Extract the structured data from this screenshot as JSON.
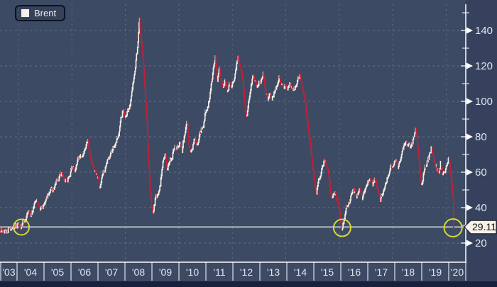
{
  "legend": {
    "label": "Brent",
    "swatch_color": "#f5f0e8"
  },
  "price_line": {
    "value": 29.11,
    "label": "29.11"
  },
  "colors": {
    "plot_bg": "#3d4a64",
    "margin_bg": "#36425d",
    "bottom_strip": "#18213c",
    "grid": "#8ba0b8",
    "axis": "#ffffff",
    "bar_up": "#f2eee5",
    "bar_down": "#c22038",
    "price_line": "#ffffff",
    "tag_bg": "#f7f2e8",
    "tag_border": "#14141c",
    "tag_text": "#101010",
    "tick_label": "#dfe5ee",
    "highlight": "#d5da31"
  },
  "chart_data": {
    "type": "line",
    "title": "Brent",
    "legend_entries": [
      "Brent"
    ],
    "legend_position": "top-left",
    "grid": "dashed",
    "x_axis": {
      "labels": [
        "'03",
        "'04",
        "'05",
        "'06",
        "'07",
        "'08",
        "'09",
        "'10",
        "'11",
        "'12",
        "'13",
        "'14",
        "'15",
        "'16",
        "'17",
        "'18",
        "'19",
        "'20"
      ],
      "start_year_fraction": 2003.37,
      "end_year_fraction": 2020.185
    },
    "y_axis": {
      "side": "right",
      "major_ticks": [
        20,
        40,
        60,
        80,
        100,
        120,
        140
      ],
      "minor_ticks": [
        30,
        50,
        70,
        90,
        110,
        130,
        150
      ],
      "range": [
        14,
        152
      ]
    },
    "reference_line": {
      "value": 29.11,
      "label": "29.11"
    },
    "highlighted_lows": [
      {
        "t": 2004.16,
        "value": 29.0,
        "radius_px": 11
      },
      {
        "t": 2016.05,
        "value": 28.6,
        "radius_px": 12
      },
      {
        "t": 2020.16,
        "value": 28.6,
        "radius_px": 12.5
      }
    ],
    "series": {
      "name": "Brent",
      "anchors": [
        [
          2003.37,
          27
        ],
        [
          2003.5,
          28.5
        ],
        [
          2003.62,
          27
        ],
        [
          2003.75,
          29
        ],
        [
          2003.85,
          28
        ],
        [
          2003.95,
          30
        ],
        [
          2004.05,
          31
        ],
        [
          2004.12,
          29.5
        ],
        [
          2004.2,
          32
        ],
        [
          2004.3,
          34
        ],
        [
          2004.4,
          36
        ],
        [
          2004.5,
          35
        ],
        [
          2004.62,
          41
        ],
        [
          2004.75,
          45
        ],
        [
          2004.82,
          41
        ],
        [
          2004.92,
          40
        ],
        [
          2005.05,
          44
        ],
        [
          2005.15,
          47
        ],
        [
          2005.25,
          51
        ],
        [
          2005.35,
          50
        ],
        [
          2005.45,
          54
        ],
        [
          2005.55,
          56
        ],
        [
          2005.65,
          59
        ],
        [
          2005.75,
          57
        ],
        [
          2005.85,
          55
        ],
        [
          2005.95,
          59
        ],
        [
          2006.05,
          63
        ],
        [
          2006.15,
          62
        ],
        [
          2006.25,
          67
        ],
        [
          2006.35,
          70
        ],
        [
          2006.45,
          69
        ],
        [
          2006.55,
          74
        ],
        [
          2006.62,
          78
        ],
        [
          2006.7,
          70
        ],
        [
          2006.8,
          63
        ],
        [
          2006.9,
          60
        ],
        [
          2007.0,
          57
        ],
        [
          2007.07,
          52
        ],
        [
          2007.15,
          58
        ],
        [
          2007.25,
          62
        ],
        [
          2007.35,
          66
        ],
        [
          2007.45,
          70
        ],
        [
          2007.55,
          72
        ],
        [
          2007.65,
          75
        ],
        [
          2007.75,
          80
        ],
        [
          2007.85,
          90
        ],
        [
          2007.92,
          94
        ],
        [
          2008.0,
          92
        ],
        [
          2008.1,
          95
        ],
        [
          2008.2,
          100
        ],
        [
          2008.3,
          110
        ],
        [
          2008.4,
          122
        ],
        [
          2008.48,
          132
        ],
        [
          2008.54,
          146
        ],
        [
          2008.6,
          135
        ],
        [
          2008.67,
          124
        ],
        [
          2008.73,
          110
        ],
        [
          2008.8,
          95
        ],
        [
          2008.87,
          68
        ],
        [
          2008.93,
          50
        ],
        [
          2008.99,
          40
        ],
        [
          2009.04,
          36
        ],
        [
          2009.12,
          44
        ],
        [
          2009.2,
          46
        ],
        [
          2009.3,
          52
        ],
        [
          2009.42,
          66
        ],
        [
          2009.5,
          71
        ],
        [
          2009.56,
          62
        ],
        [
          2009.65,
          67
        ],
        [
          2009.75,
          68
        ],
        [
          2009.85,
          76
        ],
        [
          2009.95,
          74
        ],
        [
          2010.05,
          78
        ],
        [
          2010.12,
          71
        ],
        [
          2010.2,
          80
        ],
        [
          2010.3,
          87
        ],
        [
          2010.4,
          72
        ],
        [
          2010.5,
          75
        ],
        [
          2010.6,
          78
        ],
        [
          2010.7,
          76
        ],
        [
          2010.8,
          83
        ],
        [
          2010.9,
          86
        ],
        [
          2010.97,
          93
        ],
        [
          2011.05,
          97
        ],
        [
          2011.15,
          103
        ],
        [
          2011.25,
          115
        ],
        [
          2011.3,
          122
        ],
        [
          2011.35,
          126
        ],
        [
          2011.42,
          112
        ],
        [
          2011.5,
          117
        ],
        [
          2011.57,
          111
        ],
        [
          2011.65,
          107
        ],
        [
          2011.72,
          113
        ],
        [
          2011.8,
          106
        ],
        [
          2011.88,
          110
        ],
        [
          2011.95,
          108
        ],
        [
          2012.03,
          111
        ],
        [
          2012.1,
          118
        ],
        [
          2012.2,
          124
        ],
        [
          2012.3,
          119
        ],
        [
          2012.4,
          106
        ],
        [
          2012.47,
          95
        ],
        [
          2012.52,
          90
        ],
        [
          2012.6,
          102
        ],
        [
          2012.68,
          110
        ],
        [
          2012.75,
          115
        ],
        [
          2012.83,
          112
        ],
        [
          2012.9,
          108
        ],
        [
          2012.97,
          111
        ],
        [
          2013.05,
          113
        ],
        [
          2013.12,
          117
        ],
        [
          2013.2,
          108
        ],
        [
          2013.3,
          100
        ],
        [
          2013.37,
          103
        ],
        [
          2013.45,
          101
        ],
        [
          2013.55,
          106
        ],
        [
          2013.65,
          110
        ],
        [
          2013.72,
          116
        ],
        [
          2013.8,
          110
        ],
        [
          2013.88,
          108
        ],
        [
          2013.95,
          111
        ],
        [
          2014.03,
          107
        ],
        [
          2014.1,
          109
        ],
        [
          2014.18,
          108
        ],
        [
          2014.25,
          107
        ],
        [
          2014.33,
          110
        ],
        [
          2014.42,
          113
        ],
        [
          2014.48,
          115
        ],
        [
          2014.55,
          110
        ],
        [
          2014.62,
          104
        ],
        [
          2014.7,
          97
        ],
        [
          2014.78,
          88
        ],
        [
          2014.85,
          79
        ],
        [
          2014.92,
          70
        ],
        [
          2014.99,
          60
        ],
        [
          2015.05,
          50
        ],
        [
          2015.1,
          47
        ],
        [
          2015.17,
          55
        ],
        [
          2015.25,
          60
        ],
        [
          2015.33,
          64
        ],
        [
          2015.4,
          66
        ],
        [
          2015.47,
          63
        ],
        [
          2015.55,
          58
        ],
        [
          2015.62,
          50
        ],
        [
          2015.67,
          43
        ],
        [
          2015.73,
          49
        ],
        [
          2015.8,
          48
        ],
        [
          2015.87,
          44
        ],
        [
          2015.93,
          40
        ],
        [
          2016.0,
          34
        ],
        [
          2016.05,
          28
        ],
        [
          2016.12,
          33
        ],
        [
          2016.2,
          39
        ],
        [
          2016.28,
          43
        ],
        [
          2016.35,
          45
        ],
        [
          2016.42,
          48
        ],
        [
          2016.5,
          50
        ],
        [
          2016.57,
          46
        ],
        [
          2016.65,
          49
        ],
        [
          2016.72,
          51
        ],
        [
          2016.8,
          45
        ],
        [
          2016.87,
          49
        ],
        [
          2016.95,
          55
        ],
        [
          2017.03,
          56
        ],
        [
          2017.1,
          55
        ],
        [
          2017.17,
          52
        ],
        [
          2017.25,
          55
        ],
        [
          2017.32,
          52
        ],
        [
          2017.4,
          48
        ],
        [
          2017.47,
          45
        ],
        [
          2017.55,
          49
        ],
        [
          2017.62,
          52
        ],
        [
          2017.7,
          56
        ],
        [
          2017.78,
          58
        ],
        [
          2017.85,
          62
        ],
        [
          2017.93,
          64
        ],
        [
          2018.0,
          67
        ],
        [
          2018.07,
          69
        ],
        [
          2018.13,
          63
        ],
        [
          2018.2,
          66
        ],
        [
          2018.28,
          71
        ],
        [
          2018.35,
          76
        ],
        [
          2018.42,
          78
        ],
        [
          2018.5,
          75
        ],
        [
          2018.57,
          73
        ],
        [
          2018.65,
          76
        ],
        [
          2018.72,
          81
        ],
        [
          2018.78,
          86
        ],
        [
          2018.85,
          76
        ],
        [
          2018.9,
          66
        ],
        [
          2018.97,
          56
        ],
        [
          2019.02,
          52
        ],
        [
          2019.08,
          60
        ],
        [
          2019.15,
          64
        ],
        [
          2019.22,
          67
        ],
        [
          2019.3,
          71
        ],
        [
          2019.35,
          74
        ],
        [
          2019.42,
          70
        ],
        [
          2019.48,
          64
        ],
        [
          2019.55,
          63
        ],
        [
          2019.62,
          58
        ],
        [
          2019.68,
          61
        ],
        [
          2019.71,
          67
        ],
        [
          2019.75,
          60
        ],
        [
          2019.82,
          59
        ],
        [
          2019.88,
          62
        ],
        [
          2019.95,
          66
        ],
        [
          2020.0,
          69
        ],
        [
          2020.05,
          62
        ],
        [
          2020.09,
          57
        ],
        [
          2020.12,
          53
        ],
        [
          2020.14,
          50
        ],
        [
          2020.16,
          46
        ],
        [
          2020.175,
          36
        ],
        [
          2020.185,
          29.11
        ]
      ]
    }
  }
}
